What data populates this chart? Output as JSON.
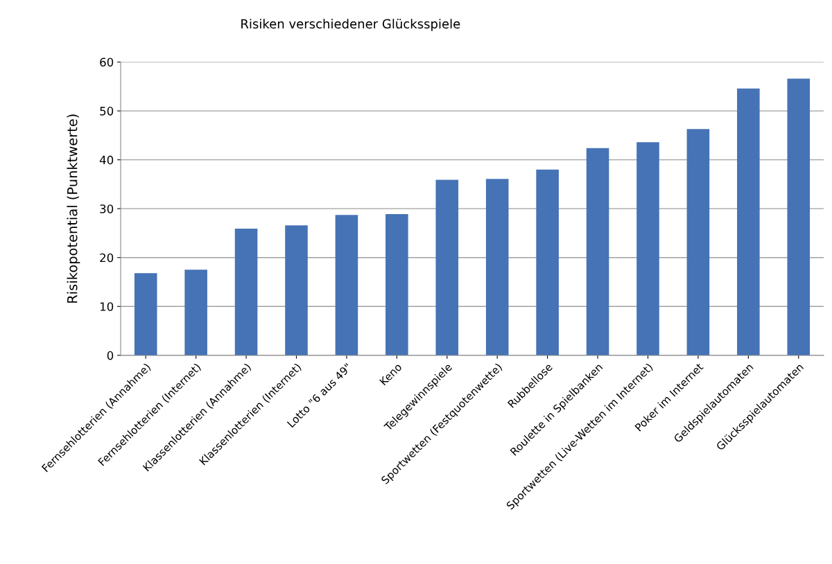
{
  "chart_data": {
    "type": "bar",
    "title": "Risiken verschiedener Glücksspiele",
    "ylabel": "Risikopotential (Punktwerte)",
    "categories": [
      "Fernsehlotterien (Annahme)",
      "Fernsehlotterien (Internet)",
      "Klassenlotterien (Annahme)",
      "Klassenlotterien (Internet)",
      "Lotto \"6 aus 49\"",
      "Keno",
      "Telegewinnspiele",
      "Sportwetten (Festquotenwette)",
      "Rubbellose",
      "Roulette in Spielbanken",
      "Sportwetten (Live-Wetten im Internet)",
      "Poker im Internet",
      "Geldspielautomaten",
      "Glücksspielautomaten"
    ],
    "values": [
      16.8,
      17.5,
      25.9,
      26.6,
      28.7,
      28.9,
      35.9,
      36.1,
      38.0,
      42.4,
      43.6,
      46.3,
      54.6,
      56.6
    ],
    "color": "#4573b5",
    "ylim": [
      0,
      60
    ],
    "yticks": [
      0,
      10,
      20,
      30,
      40,
      50,
      60
    ],
    "grid": "y"
  }
}
